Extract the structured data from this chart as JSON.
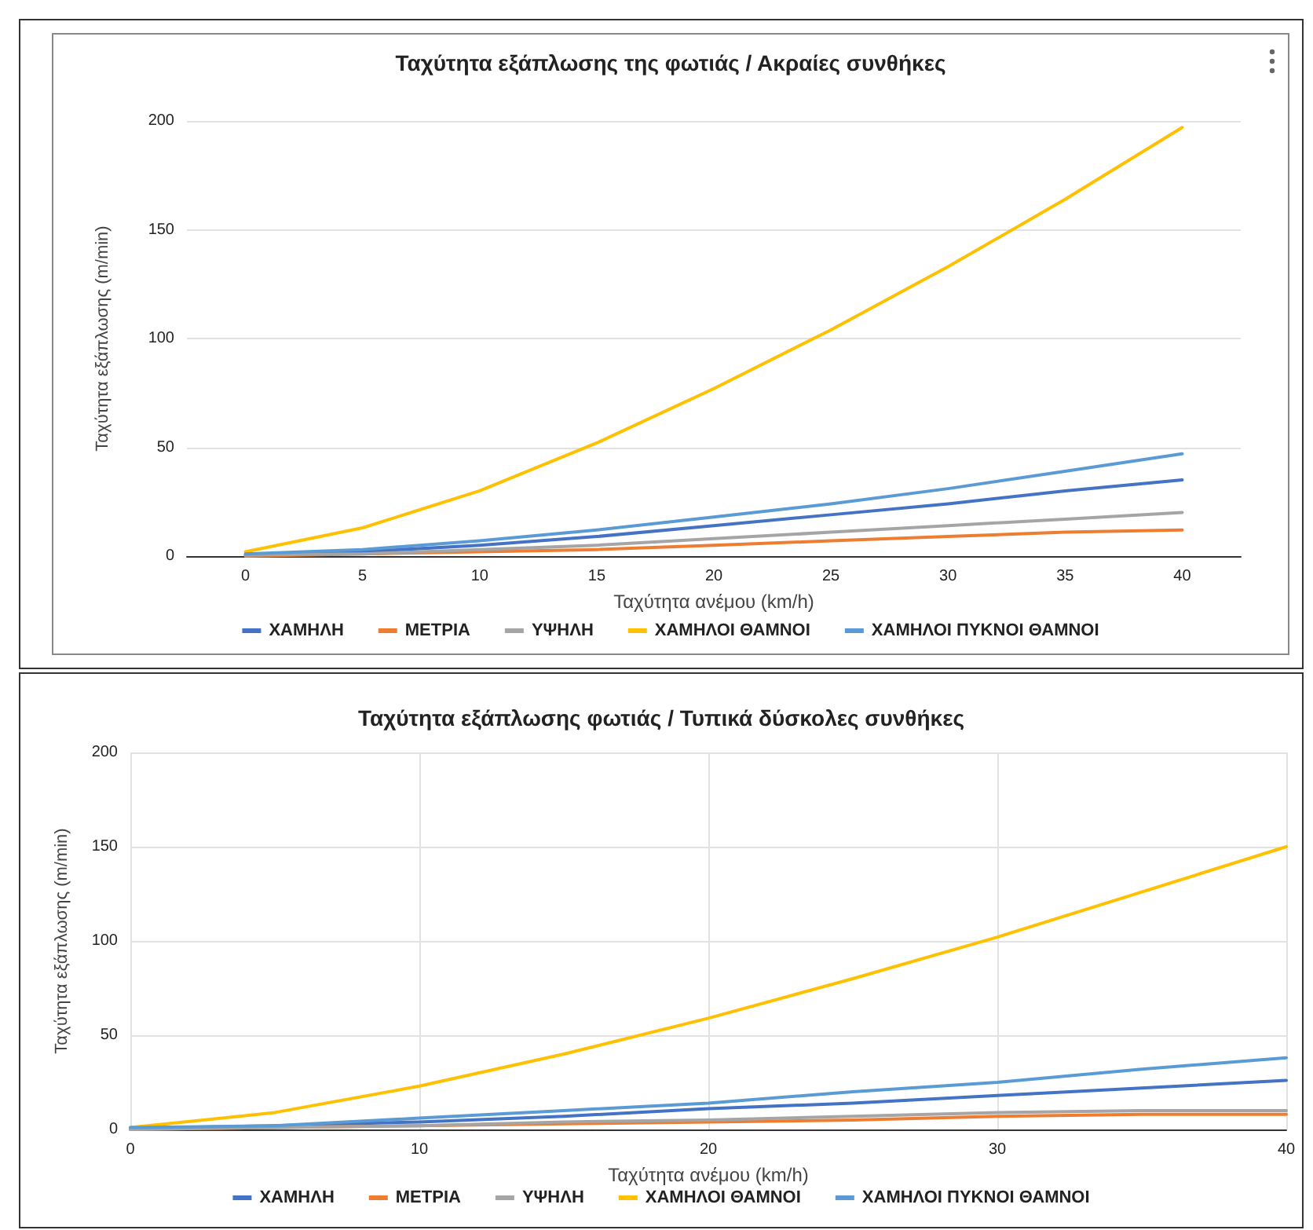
{
  "chart_data": [
    {
      "type": "line",
      "title": "Ταχύτητα εξάπλωσης της φωτιάς / Ακραίες συνθήκες",
      "xlabel": "Ταχύτητα ανέμου (km/h)",
      "ylabel": "Ταχύτητα εξάπλωσης (m/min)",
      "x": [
        0,
        5,
        10,
        15,
        20,
        25,
        30,
        35,
        40
      ],
      "series": [
        {
          "name": "ΧΑΜΗΛΗ",
          "color": "#4472c4",
          "values": [
            0.5,
            2,
            5,
            9,
            14,
            19,
            24,
            30,
            35
          ]
        },
        {
          "name": "ΜΕΤΡΙΑ",
          "color": "#ed7d31",
          "values": [
            0,
            1,
            2,
            3,
            5,
            7,
            9,
            11,
            12
          ]
        },
        {
          "name": "ΥΨΗΛΗ",
          "color": "#a5a5a5",
          "values": [
            0.5,
            1,
            3,
            5,
            8,
            11,
            14,
            17,
            20
          ]
        },
        {
          "name": "ΧΑΜΗΛΟΙ ΘΑΜΝΟΙ",
          "color": "#ffc000",
          "values": [
            2,
            13,
            30,
            52,
            77,
            104,
            133,
            164,
            197
          ]
        },
        {
          "name": "ΧΑΜΗΛΟΙ ΠΥΚΝΟΙ ΘΑΜΝΟΙ",
          "color": "#5b9bd5",
          "values": [
            1,
            3,
            7,
            12,
            18,
            24,
            31,
            39,
            47
          ]
        }
      ],
      "xlim": [
        -2.5,
        42.5
      ],
      "xticks": [
        0,
        5,
        10,
        15,
        20,
        25,
        30,
        35,
        40
      ],
      "ylim": [
        0,
        200
      ],
      "yticks": [
        0,
        50,
        100,
        150,
        200
      ],
      "grid": "y",
      "legend": "bottom",
      "marker": "none",
      "line_style": "solid"
    },
    {
      "type": "line",
      "title": "Ταχύτητα εξάπλωσης φωτιάς / Τυπικά δύσκολες συνθήκες",
      "xlabel": "Ταχύτητα ανέμου (km/h)",
      "ylabel": "Ταχύτητα εξάπλωσης (m/min)",
      "x": [
        0,
        5,
        10,
        15,
        20,
        25,
        30,
        35,
        40
      ],
      "series": [
        {
          "name": "ΧΑΜΗΛΗ",
          "color": "#4472c4",
          "values": [
            0.5,
            2,
            4,
            7,
            11,
            14,
            18,
            22,
            26
          ]
        },
        {
          "name": "ΜΕΤΡΙΑ",
          "color": "#ed7d31",
          "values": [
            0,
            1,
            2,
            3,
            4,
            5,
            7,
            8,
            8
          ]
        },
        {
          "name": "ΥΨΗΛΗ",
          "color": "#a5a5a5",
          "values": [
            0,
            1,
            2,
            4,
            5,
            7,
            9,
            10,
            10
          ]
        },
        {
          "name": "ΧΑΜΗΛΟΙ ΘΑΜΝΟΙ",
          "color": "#ffc000",
          "values": [
            1,
            9,
            23,
            40,
            59,
            80,
            102,
            126,
            150
          ]
        },
        {
          "name": "ΧΑΜΗΛΟΙ ΠΥΚΝΟΙ ΘΑΜΝΟΙ",
          "color": "#5b9bd5",
          "values": [
            1,
            2,
            6,
            10,
            14,
            20,
            25,
            32,
            38
          ]
        }
      ],
      "xlim": [
        0,
        40
      ],
      "xticks": [
        0,
        10,
        20,
        30,
        40
      ],
      "ylim": [
        0,
        200
      ],
      "yticks": [
        0,
        50,
        100,
        150,
        200
      ],
      "grid": true,
      "legend": "bottom",
      "marker": "none",
      "line_style": "solid"
    }
  ]
}
